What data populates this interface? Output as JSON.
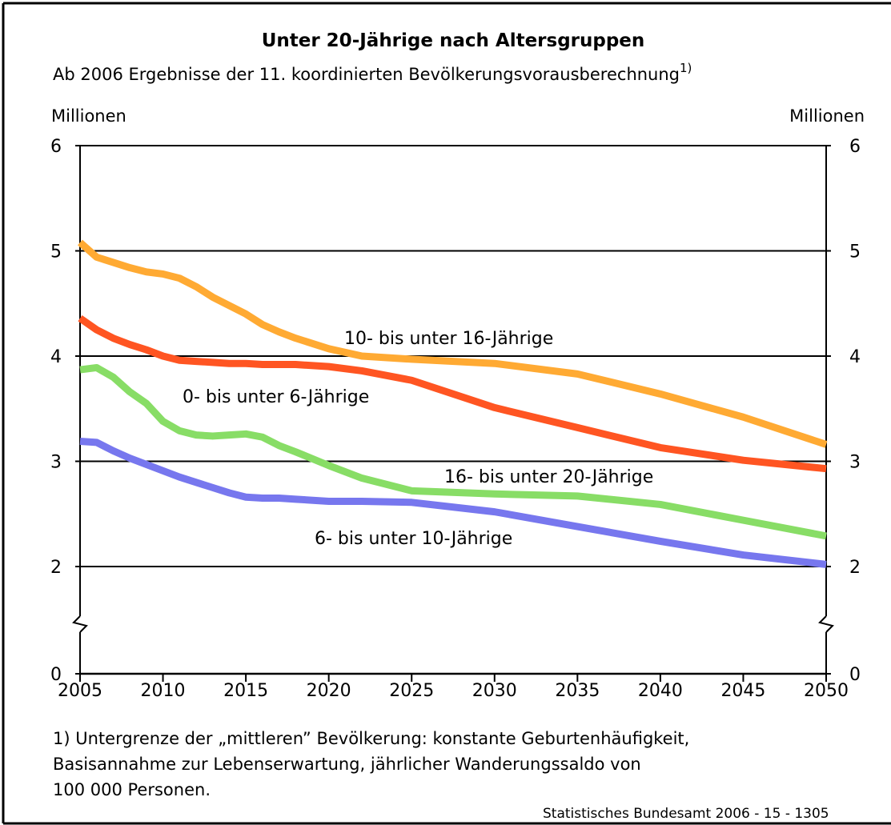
{
  "chart_data": {
    "type": "line",
    "title": "Unter 20-Jährige nach Altersgruppen",
    "subtitle": "Ab 2006 Ergebnisse der 11. koordinierten Bevölkerungsvorausberechnung",
    "subtitle_note": "1)",
    "ylabel": "Millionen",
    "y2label": "Millionen",
    "x": [
      2005,
      2006,
      2007,
      2008,
      2009,
      2010,
      2011,
      2012,
      2013,
      2014,
      2015,
      2016,
      2017,
      2018,
      2020,
      2022,
      2025,
      2030,
      2035,
      2040,
      2045,
      2050
    ],
    "series": [
      {
        "name": "10- bis unter 16-Jährige",
        "color": "#ffaa33",
        "values": [
          5.08,
          4.94,
          4.89,
          4.84,
          4.8,
          4.78,
          4.74,
          4.66,
          4.56,
          4.48,
          4.4,
          4.3,
          4.23,
          4.17,
          4.07,
          4.0,
          3.97,
          3.93,
          3.83,
          3.64,
          3.42,
          3.16
        ]
      },
      {
        "name": "0- bis unter 6-Jährige",
        "color": "#ff5522",
        "values": [
          4.36,
          4.25,
          4.17,
          4.11,
          4.06,
          4.0,
          3.96,
          3.95,
          3.94,
          3.93,
          3.93,
          3.92,
          3.92,
          3.92,
          3.9,
          3.86,
          3.77,
          3.51,
          3.32,
          3.13,
          3.01,
          2.93
        ]
      },
      {
        "name": "16- bis unter 20-Jährige",
        "color": "#88dd66",
        "values": [
          3.87,
          3.89,
          3.8,
          3.66,
          3.55,
          3.38,
          3.29,
          3.25,
          3.24,
          3.25,
          3.26,
          3.23,
          3.15,
          3.09,
          2.96,
          2.84,
          2.72,
          2.69,
          2.67,
          2.59,
          2.44,
          2.29
        ]
      },
      {
        "name": "6- bis unter 10-Jährige",
        "color": "#7777ee",
        "values": [
          3.19,
          3.18,
          3.1,
          3.03,
          2.97,
          2.91,
          2.85,
          2.8,
          2.75,
          2.7,
          2.66,
          2.65,
          2.65,
          2.64,
          2.62,
          2.62,
          2.61,
          2.52,
          2.38,
          2.24,
          2.11,
          2.02
        ]
      }
    ],
    "xlim": [
      2005,
      2050
    ],
    "xticks": [
      2005,
      2010,
      2015,
      2020,
      2025,
      2030,
      2035,
      2040,
      2045,
      2050
    ],
    "ylim": [
      0,
      6
    ],
    "yticks": [
      0,
      2,
      3,
      4,
      5,
      6
    ],
    "y2lim": [
      0,
      6
    ],
    "y2ticks": [
      0,
      2,
      3,
      4,
      5,
      6
    ],
    "axis_break": [
      0,
      2
    ],
    "grid": true,
    "footnote": [
      "1) Untergrenze der „mittleren” Bevölkerung: konstante Geburtenhäufigkeit,",
      "Basisannahme zur Lebenserwartung, jährlicher Wanderungssaldo von",
      "100 000 Personen."
    ],
    "source": "Statistisches Bundesamt 2006 - 15 - 1305"
  }
}
